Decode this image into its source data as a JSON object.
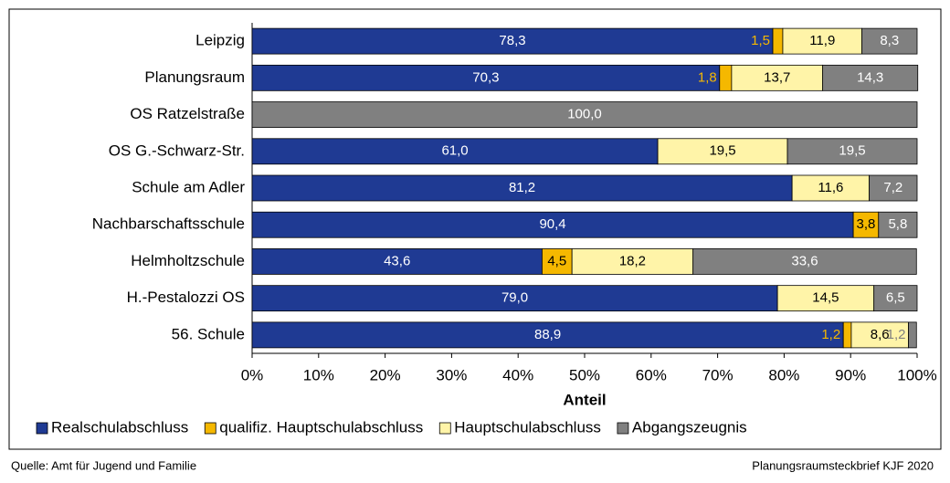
{
  "chart_data": {
    "type": "stacked-barh",
    "categories": [
      "Leipzig",
      "Planungsraum",
      "OS Ratzelstraße",
      "OS G.-Schwarz-Str.",
      "Schule am Adler",
      "Nachbarschaftsschule",
      "Helmholtzschule",
      "H.-Pestalozzi OS",
      "56. Schule"
    ],
    "series": [
      {
        "name": "Realschulabschluss",
        "color": "#1f3a93",
        "label_color": "#ffffff",
        "values": [
          78.3,
          70.3,
          null,
          61.0,
          81.2,
          90.4,
          43.6,
          79.0,
          88.9
        ],
        "value_labels": [
          "78,3",
          "70,3",
          null,
          "61,0",
          "81,2",
          "90,4",
          "43,6",
          "79,0",
          "88,9"
        ]
      },
      {
        "name": "qualifiz. Hauptschulabschluss",
        "color": "#f5b800",
        "label_color": "#000000",
        "values": [
          1.5,
          1.8,
          null,
          null,
          null,
          3.8,
          4.5,
          null,
          1.2
        ],
        "value_labels": [
          "1,5",
          "1,8",
          null,
          null,
          null,
          "3,8",
          "4,5",
          null,
          "1,2"
        ]
      },
      {
        "name": "Hauptschulabschluss",
        "color": "#fff4a8",
        "label_color": "#000000",
        "values": [
          11.9,
          13.7,
          null,
          19.5,
          11.6,
          null,
          18.2,
          14.5,
          8.6
        ],
        "value_labels": [
          "11,9",
          "13,7",
          null,
          "19,5",
          "11,6",
          null,
          "18,2",
          "14,5",
          "8,6"
        ]
      },
      {
        "name": "Abgangszeugnis",
        "color": "#808080",
        "label_color": "#ffffff",
        "values": [
          8.3,
          14.3,
          100.0,
          19.5,
          7.2,
          5.8,
          33.6,
          6.5,
          1.2
        ],
        "value_labels": [
          "8,3",
          "14,3",
          "100,0",
          "19,5",
          "7,2",
          "5,8",
          "33,6",
          "6,5",
          "1,2"
        ]
      }
    ],
    "xlabel": "Anteil",
    "xlim": [
      0,
      100
    ],
    "xticks": [
      {
        "value": 0,
        "label": "0%"
      },
      {
        "value": 10,
        "label": "10%"
      },
      {
        "value": 20,
        "label": "20%"
      },
      {
        "value": 30,
        "label": "30%"
      },
      {
        "value": 40,
        "label": "40%"
      },
      {
        "value": 50,
        "label": "50%"
      },
      {
        "value": 60,
        "label": "60%"
      },
      {
        "value": 70,
        "label": "70%"
      },
      {
        "value": 80,
        "label": "80%"
      },
      {
        "value": 90,
        "label": "90%"
      },
      {
        "value": 100,
        "label": "100%"
      }
    ],
    "legend": "bottom",
    "source": "Quelle: Amt für Jugend und Familie",
    "note": "Planungsraumsteckbrief KJF 2020"
  }
}
